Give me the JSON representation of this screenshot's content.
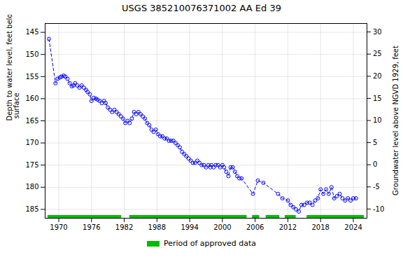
{
  "chart_data": {
    "type": "line",
    "title": "USGS 385210076371002 AA Ed  39",
    "ylabel": "Depth to water level, feet below land\n surface",
    "y2label": "Groundwater level above NGVD 1929, feet",
    "x": [
      1968.2,
      1969.4,
      1969.8,
      1970.2,
      1970.5,
      1970.9,
      1971.2,
      1971.6,
      1972.0,
      1972.4,
      1972.7,
      1973.0,
      1973.4,
      1973.8,
      1974.2,
      1974.6,
      1975.0,
      1975.3,
      1975.7,
      1976.0,
      1976.4,
      1976.8,
      1977.1,
      1977.5,
      1977.9,
      1978.3,
      1978.6,
      1979.0,
      1979.4,
      1979.8,
      1980.2,
      1980.6,
      1981.0,
      1981.4,
      1981.8,
      1982.2,
      1982.6,
      1983.0,
      1983.4,
      1983.8,
      1984.2,
      1984.6,
      1985.0,
      1985.4,
      1985.8,
      1986.2,
      1986.6,
      1987.0,
      1987.4,
      1987.8,
      1988.2,
      1988.6,
      1989.0,
      1989.4,
      1989.8,
      1990.2,
      1990.6,
      1991.0,
      1991.4,
      1991.8,
      1992.2,
      1992.6,
      1993.0,
      1993.4,
      1993.8,
      1994.2,
      1994.6,
      1995.0,
      1995.4,
      1995.8,
      1996.2,
      1996.6,
      1997.0,
      1997.4,
      1997.8,
      1998.0,
      1998.4,
      1998.8,
      1999.2,
      1999.6,
      2000.0,
      2000.3,
      2000.7,
      2001.1,
      2001.5,
      2001.9,
      2002.3,
      2002.7,
      2003.1,
      2003.5,
      2005.6,
      2006.5,
      2007.5,
      2010.2,
      2011.0,
      2012.0,
      2012.5,
      2013.0,
      2013.5,
      2014.0,
      2014.5,
      2015.0,
      2015.5,
      2016.0,
      2016.5,
      2017.0,
      2017.5,
      2018.0,
      2018.5,
      2019.0,
      2019.5,
      2020.0,
      2020.5,
      2021.0,
      2021.5,
      2022.0,
      2022.5,
      2023.0,
      2023.5,
      2024.0,
      2024.5
    ],
    "values": [
      146.5,
      156.5,
      155.5,
      155.2,
      155.0,
      154.8,
      155.0,
      155.5,
      156.5,
      157.2,
      157.0,
      156.5,
      157.0,
      157.5,
      157.0,
      157.5,
      158.0,
      158.5,
      159.0,
      160.5,
      159.8,
      160.0,
      160.2,
      160.5,
      161.0,
      160.5,
      161.0,
      162.0,
      162.5,
      163.0,
      162.5,
      163.0,
      163.5,
      164.0,
      164.5,
      165.5,
      165.0,
      165.5,
      164.5,
      163.0,
      163.5,
      163.0,
      163.5,
      164.0,
      164.5,
      165.5,
      166.0,
      167.0,
      167.5,
      167.0,
      168.0,
      168.5,
      168.5,
      169.0,
      169.0,
      169.5,
      169.5,
      169.5,
      170.0,
      170.5,
      171.0,
      172.0,
      172.5,
      173.0,
      173.5,
      174.0,
      174.5,
      174.5,
      174.0,
      174.5,
      175.0,
      175.0,
      175.5,
      175.0,
      175.5,
      175.0,
      175.5,
      175.0,
      175.0,
      175.5,
      175.0,
      175.5,
      176.5,
      177.5,
      175.5,
      175.5,
      176.5,
      177.5,
      178.0,
      178.0,
      181.5,
      178.5,
      179.0,
      181.5,
      182.5,
      183.0,
      184.0,
      184.5,
      185.0,
      185.5,
      184.0,
      184.0,
      183.5,
      183.5,
      184.0,
      183.0,
      182.5,
      180.5,
      181.5,
      180.5,
      181.5,
      180.0,
      182.5,
      182.0,
      181.5,
      182.5,
      183.0,
      182.5,
      183.0,
      182.5,
      182.5
    ],
    "color": "#0000ff",
    "marker": "circle",
    "line_style": "dashed",
    "xlim": [
      1967.5,
      2026.5
    ],
    "xticks": [
      1970,
      1976,
      1982,
      1988,
      1994,
      2000,
      2006,
      2012,
      2018,
      2024
    ],
    "ylim": [
      187,
      143
    ],
    "yticks": [
      145,
      150,
      155,
      160,
      165,
      170,
      175,
      180,
      185
    ],
    "y2lim": [
      -12,
      32
    ],
    "y2ticks": [
      30,
      25,
      20,
      15,
      10,
      5,
      0,
      -5,
      -10
    ],
    "grid": true,
    "legend": "bottom",
    "spans": {
      "name": "Period of approved data",
      "color": "#00bb00",
      "ranges": [
        [
          1968.0,
          1981.5
        ],
        [
          1983.0,
          2004.5
        ],
        [
          2005.5,
          2006.8
        ],
        [
          2008.0,
          2010.5
        ],
        [
          2011.5,
          2013.5
        ],
        [
          2015.5,
          2026.0
        ]
      ]
    }
  }
}
